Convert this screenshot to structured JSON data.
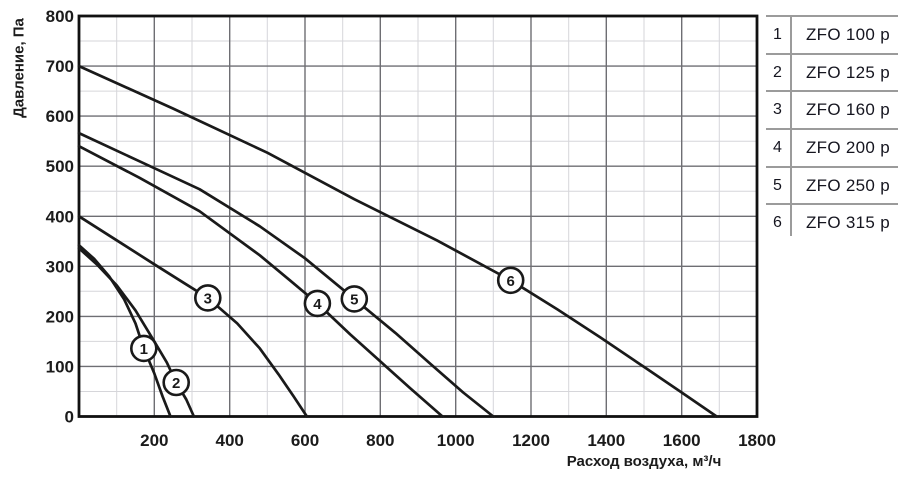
{
  "chart_data": {
    "type": "line",
    "title": "",
    "xlabel": "Расход воздуха, м³/ч",
    "ylabel": "Давление, Па",
    "xlim": [
      0,
      1800
    ],
    "ylim": [
      0,
      800
    ],
    "grid": true,
    "x_ticks": [
      200,
      400,
      600,
      800,
      1000,
      1200,
      1400,
      1600,
      1800
    ],
    "y_ticks": [
      0,
      100,
      200,
      300,
      400,
      500,
      600,
      700,
      800
    ],
    "grid_major_step": {
      "x": 200,
      "y": 100
    },
    "grid_minor_step": {
      "x": 100,
      "y": 50
    },
    "legend_position": "right-table",
    "colors": {
      "curve": "#1a1a1a",
      "border": "#111111",
      "grid_major": "#6e6e73",
      "grid_minor": "#d6d6da",
      "marker_fill": "#ffffff"
    },
    "series": [
      {
        "name": "ZFO 100 p",
        "label": "1",
        "label_at": [
          172,
          136
        ],
        "points": [
          [
            0,
            342
          ],
          [
            40,
            315
          ],
          [
            80,
            280
          ],
          [
            120,
            234
          ],
          [
            150,
            186
          ],
          [
            172,
            136
          ],
          [
            200,
            86
          ],
          [
            222,
            40
          ],
          [
            243,
            0
          ]
        ]
      },
      {
        "name": "ZFO 125 p",
        "label": "2",
        "label_at": [
          258,
          68
        ],
        "points": [
          [
            0,
            336
          ],
          [
            50,
            302
          ],
          [
            100,
            262
          ],
          [
            150,
            212
          ],
          [
            200,
            150
          ],
          [
            233,
            108
          ],
          [
            258,
            68
          ],
          [
            285,
            34
          ],
          [
            305,
            0
          ]
        ]
      },
      {
        "name": "ZFO 160 p",
        "label": "3",
        "label_at": [
          342,
          237
        ],
        "points": [
          [
            0,
            400
          ],
          [
            100,
            352
          ],
          [
            200,
            304
          ],
          [
            280,
            266
          ],
          [
            342,
            237
          ],
          [
            420,
            186
          ],
          [
            480,
            136
          ],
          [
            530,
            84
          ],
          [
            570,
            40
          ],
          [
            605,
            0
          ]
        ]
      },
      {
        "name": "ZFO 200 p",
        "label": "4",
        "label_at": [
          633,
          226
        ],
        "points": [
          [
            0,
            540
          ],
          [
            160,
            477
          ],
          [
            320,
            410
          ],
          [
            480,
            322
          ],
          [
            560,
            272
          ],
          [
            633,
            226
          ],
          [
            720,
            164
          ],
          [
            800,
            110
          ],
          [
            880,
            56
          ],
          [
            965,
            0
          ]
        ]
      },
      {
        "name": "ZFO 250 p",
        "label": "5",
        "label_at": [
          731,
          235
        ],
        "points": [
          [
            0,
            566
          ],
          [
            160,
            510
          ],
          [
            320,
            454
          ],
          [
            480,
            380
          ],
          [
            600,
            316
          ],
          [
            731,
            235
          ],
          [
            840,
            167
          ],
          [
            930,
            107
          ],
          [
            1020,
            48
          ],
          [
            1100,
            0
          ]
        ]
      },
      {
        "name": "ZFO 315 p",
        "label": "6",
        "label_at": [
          1146,
          272
        ],
        "points": [
          [
            0,
            700
          ],
          [
            250,
            615
          ],
          [
            500,
            527
          ],
          [
            731,
            434
          ],
          [
            950,
            352
          ],
          [
            1146,
            272
          ],
          [
            1270,
            214
          ],
          [
            1384,
            158
          ],
          [
            1500,
            99
          ],
          [
            1600,
            48
          ],
          [
            1693,
            0
          ]
        ]
      }
    ]
  },
  "legend": {
    "rows": [
      {
        "num": "1",
        "label": "ZFO 100 p"
      },
      {
        "num": "2",
        "label": "ZFO 125 p"
      },
      {
        "num": "3",
        "label": "ZFO 160 p"
      },
      {
        "num": "4",
        "label": "ZFO 200 p"
      },
      {
        "num": "5",
        "label": "ZFO 250 p"
      },
      {
        "num": "6",
        "label": "ZFO 315 p"
      }
    ]
  }
}
